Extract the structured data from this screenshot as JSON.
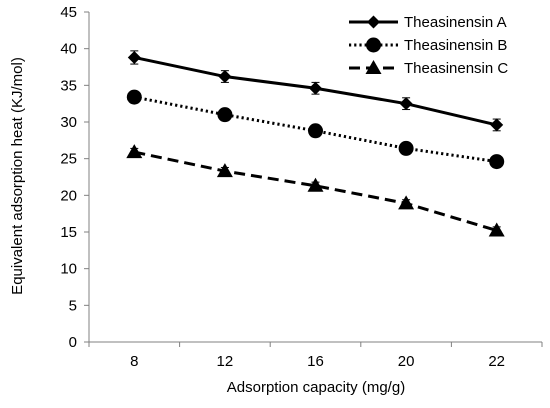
{
  "chart_data": {
    "type": "line",
    "title": "",
    "xlabel": "Adsorption capacity (mg/g)",
    "ylabel": "Equivalent  adsorption  heat  (KJ/mol)",
    "categories": [
      "8",
      "12",
      "16",
      "20",
      "22"
    ],
    "ylim": [
      0,
      45
    ],
    "yticks": [
      0,
      5,
      10,
      15,
      20,
      25,
      30,
      35,
      40,
      45
    ],
    "grid": false,
    "legend_position": "top-right",
    "series": [
      {
        "name": "Theasinensin A",
        "values": [
          38.8,
          36.2,
          34.6,
          32.5,
          29.6
        ],
        "errors": [
          0.9,
          0.8,
          0.8,
          0.8,
          0.8
        ],
        "line_style": "solid",
        "marker": "diamond",
        "color": "#000000"
      },
      {
        "name": "Theasinensin B",
        "values": [
          33.4,
          31.0,
          28.8,
          26.4,
          24.6
        ],
        "errors": [
          0.8,
          0.8,
          0.8,
          0.7,
          0.8
        ],
        "line_style": "dotted",
        "marker": "circle",
        "color": "#000000"
      },
      {
        "name": "Theasinensin C",
        "values": [
          25.9,
          23.3,
          21.3,
          18.9,
          15.2
        ],
        "errors": [
          0.5,
          0.5,
          0.5,
          0.5,
          0.5
        ],
        "line_style": "dashed",
        "marker": "triangle",
        "color": "#000000"
      }
    ]
  }
}
